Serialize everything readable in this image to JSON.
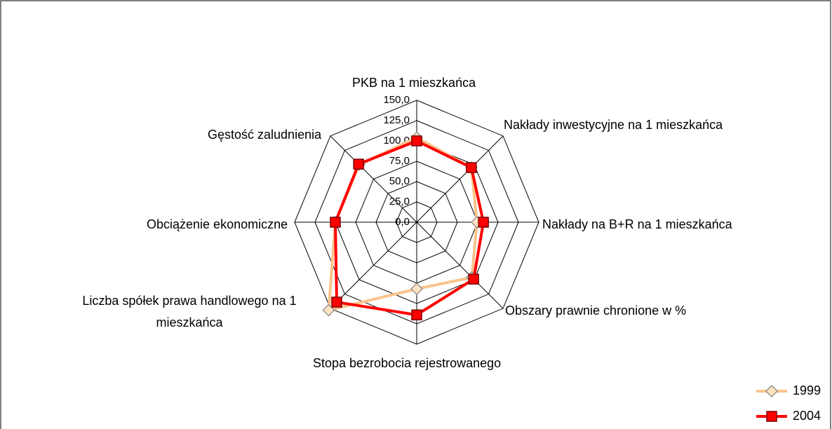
{
  "chart_data": {
    "type": "radar",
    "categories": [
      "PKB na 1 mieszkańca",
      "Nakłady inwestycyjne na 1 mieszkańca",
      "Nakłady na B+R na 1 mieszkańca",
      "Obszary prawnie chronione w %",
      "Stopa bezrobocia rejestrowanego",
      "Liczba spółek prawa handlowego na 1 mieszkańca",
      "Obciążenie ekonomiczne",
      "Gęstość zaludnienia"
    ],
    "series": [
      {
        "name": "1999",
        "color": "#fac48c",
        "values": [
          104,
          95,
          74,
          96,
          82,
          153,
          100,
          100
        ]
      },
      {
        "name": "2004",
        "color": "#ff0000",
        "values": [
          100,
          95,
          82,
          99,
          114,
          139,
          100,
          101
        ]
      }
    ],
    "ylim": [
      0,
      150
    ],
    "yticks": [
      {
        "value": 0,
        "label": "0,0"
      },
      {
        "value": 25,
        "label": "25,0"
      },
      {
        "value": 50,
        "label": "50,0"
      },
      {
        "value": 75,
        "label": "75,0"
      },
      {
        "value": 100,
        "label": "100,0"
      },
      {
        "value": 125,
        "label": "125,0"
      },
      {
        "value": 150,
        "label": "150,0"
      }
    ],
    "legend": "bottom-right"
  }
}
